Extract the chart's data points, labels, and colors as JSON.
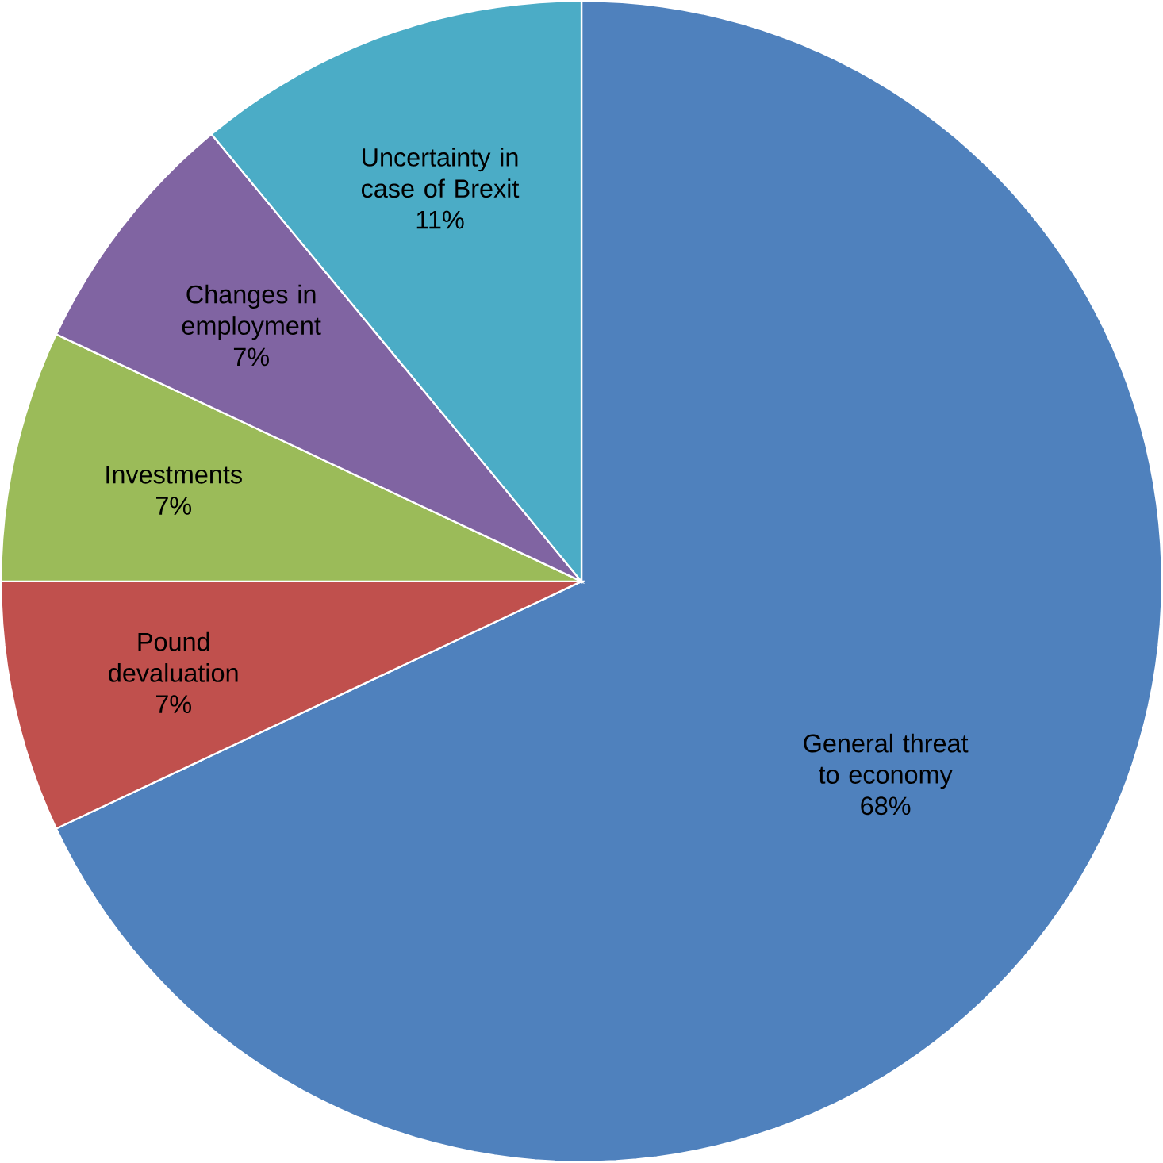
{
  "chart_data": {
    "type": "pie",
    "categories": [
      "General threat to economy",
      "Pound devaluation",
      "Investments",
      "Changes in employment",
      "Uncertainty in case of Brexit"
    ],
    "values": [
      68,
      7,
      7,
      7,
      11
    ],
    "value_labels": [
      "68%",
      "7%",
      "7%",
      "7%",
      "11%"
    ],
    "colors": [
      "#4f81bd",
      "#c0504d",
      "#9bbb59",
      "#8064a2",
      "#4bacc6"
    ]
  }
}
